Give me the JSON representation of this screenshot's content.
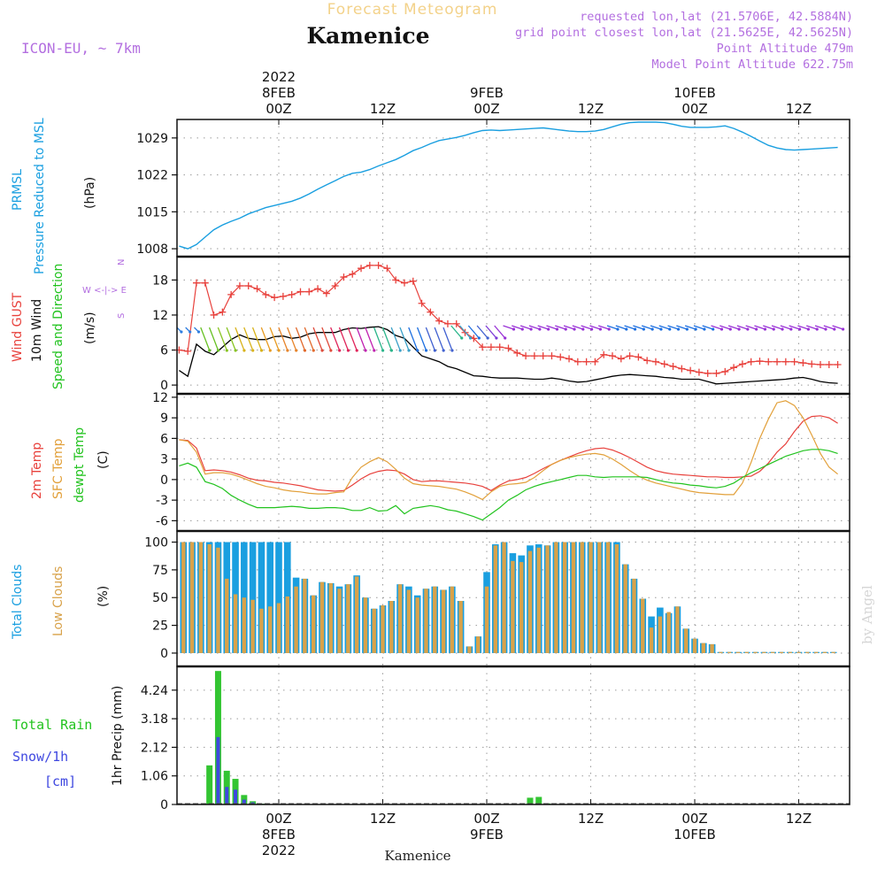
{
  "header": {
    "title": "Kamenice",
    "product": "Forecast Meteogram",
    "model": "ICON-EU, ~ 7km",
    "requested": "requested lon,lat (21.5706E, 42.5884N)",
    "gridpoint": "grid point closest lon,lat (21.5625E, 42.5625N)",
    "altitude": "Point Altitude 479m",
    "model_altitude": "Model Point Altitude 622.75m",
    "footer": "Kamenice",
    "credit": "by Angel"
  },
  "colors": {
    "pressure": "#1a9fe0",
    "gust": "#e8413c",
    "wind": "#000000",
    "temp": "#e8413c",
    "sfc_temp": "#e2a03a",
    "dewpt": "#22c31f",
    "total_clouds": "#1a9fe0",
    "low_clouds": "#d8a24a",
    "rain": "#33c532",
    "snow": "#3f48e0",
    "purple_text": "#b36fe0"
  },
  "time_axis": {
    "top_ticks": [
      {
        "hour": 0,
        "label": "00Z",
        "date": "8FEB",
        "year": "2022"
      },
      {
        "hour": 12,
        "label": "12Z",
        "date": "",
        "year": ""
      },
      {
        "hour": 24,
        "label": "00Z",
        "date": "9FEB",
        "year": ""
      },
      {
        "hour": 36,
        "label": "12Z",
        "date": "",
        "year": ""
      },
      {
        "hour": 48,
        "label": "00Z",
        "date": "10FEB",
        "year": ""
      },
      {
        "hour": 60,
        "label": "12Z",
        "date": "",
        "year": ""
      }
    ],
    "bottom_ticks": [
      {
        "hour": 0,
        "label": "00Z",
        "date": "8FEB",
        "year": "2022"
      },
      {
        "hour": 12,
        "label": "12Z",
        "date": "",
        "year": ""
      },
      {
        "hour": 24,
        "label": "00Z",
        "date": "9FEB",
        "year": ""
      },
      {
        "hour": 36,
        "label": "12Z",
        "date": "",
        "year": ""
      },
      {
        "hour": 48,
        "label": "00Z",
        "date": "10FEB",
        "year": ""
      },
      {
        "hour": 60,
        "label": "12Z",
        "date": "",
        "year": ""
      }
    ]
  },
  "panels": {
    "pressure": {
      "labels": [
        "PRMSL",
        "Pressure Reduced to MSL"
      ],
      "unit": "(hPa)"
    },
    "wind": {
      "labels": [
        "Wind GUST",
        "10m Wind",
        "Speed and Direction"
      ],
      "unit": "(m/s)",
      "compass": [
        "N",
        "W <-|-> E",
        "S"
      ]
    },
    "temp": {
      "labels": [
        "2m Temp",
        "SFC Temp",
        "dewpt Temp"
      ],
      "unit": "(C)"
    },
    "clouds": {
      "labels": [
        "Total Clouds",
        "Low Clouds"
      ],
      "unit": "(%)"
    },
    "precip": {
      "labels": [
        "Total Rain",
        "Snow/1h",
        "[cm]"
      ],
      "unit": "1hr Precip (mm)"
    }
  },
  "chart_data": [
    {
      "type": "line",
      "title": "PRMSL Pressure Reduced to MSL",
      "ylabel": "hPa",
      "ylim": [
        1006.5,
        1032.5
      ],
      "yticks": [
        1008,
        1015,
        1022,
        1029
      ],
      "x_hours": [
        -11.5,
        -10.5,
        -9.5,
        -8.5,
        -7.5,
        -6.5,
        -5.5,
        -4.5,
        -3.5,
        -2.5,
        -1.5,
        -0.5,
        0.5,
        1.5,
        2.5,
        3.5,
        4.5,
        5.5,
        6.5,
        7.5,
        8.5,
        9.5,
        10.5,
        11.5,
        12.5,
        13.5,
        14.5,
        15.5,
        16.5,
        17.5,
        18.5,
        19.5,
        20.5,
        21.5,
        22.5,
        23.5,
        24.5,
        25.5,
        26.5,
        27.5,
        28.5,
        29.5,
        30.5,
        31.5,
        32.5,
        33.5,
        34.5,
        35.5,
        36.5,
        37.5,
        38.5,
        39.5,
        40.5,
        41.5,
        42.5,
        43.5,
        44.5,
        45.5,
        46.5,
        47.5,
        48.5,
        49.5,
        50.5,
        51.5,
        52.5,
        53.5,
        54.5,
        55.5,
        56.5,
        57.5,
        58.5,
        59.5,
        60.5,
        61.5,
        62.5,
        63.5,
        64.5
      ],
      "values": [
        1008.5,
        1008.0,
        1008.8,
        1010.2,
        1011.6,
        1012.5,
        1013.2,
        1013.8,
        1014.6,
        1015.2,
        1015.8,
        1016.2,
        1016.6,
        1017.0,
        1017.6,
        1018.4,
        1019.3,
        1020.1,
        1020.9,
        1021.7,
        1022.3,
        1022.5,
        1023.0,
        1023.7,
        1024.3,
        1024.9,
        1025.7,
        1026.6,
        1027.2,
        1027.9,
        1028.5,
        1028.8,
        1029.1,
        1029.5,
        1030.0,
        1030.4,
        1030.5,
        1030.4,
        1030.5,
        1030.6,
        1030.7,
        1030.8,
        1030.9,
        1030.7,
        1030.5,
        1030.3,
        1030.2,
        1030.2,
        1030.3,
        1030.6,
        1031.1,
        1031.6,
        1031.9,
        1032.0,
        1032.0,
        1032.0,
        1031.9,
        1031.6,
        1031.2,
        1031.0,
        1031.0,
        1031.0,
        1031.1,
        1031.3,
        1030.8,
        1030.1,
        1029.3,
        1028.4,
        1027.6,
        1027.1,
        1026.8,
        1026.7,
        1026.8,
        1026.9,
        1027.0,
        1027.1,
        1027.2
      ]
    },
    {
      "type": "line",
      "title": "Wind GUST / 10m Wind",
      "ylabel": "m/s",
      "ylim": [
        -1.5,
        22.0
      ],
      "yticks": [
        0,
        6,
        12,
        18
      ],
      "gust_hours": [
        -11.5,
        -10.5,
        -9.5,
        -8.5,
        -7.5,
        -6.5,
        -5.5,
        -4.5,
        -3.5,
        -2.5,
        -1.5,
        -0.5,
        0.5,
        1.5,
        2.5,
        3.5,
        4.5,
        5.5,
        6.5,
        7.5,
        8.5,
        9.5,
        10.5,
        11.5,
        12.5,
        13.5,
        14.5,
        15.5,
        16.5,
        17.5,
        18.5,
        19.5,
        20.5,
        21.5,
        22.5,
        23.5,
        24.5,
        25.5,
        26.5,
        27.5,
        28.5,
        29.5,
        30.5,
        31.5,
        32.5,
        33.5,
        34.5,
        35.5,
        36.5,
        37.5,
        38.5,
        39.5,
        40.5,
        41.5,
        42.5,
        43.5,
        44.5,
        45.5,
        46.5,
        47.5,
        48.5,
        49.5,
        50.5,
        51.5,
        52.5,
        53.5,
        54.5,
        55.5,
        56.5,
        57.5,
        58.5,
        59.5,
        60.5,
        61.5,
        62.5,
        63.5,
        64.5
      ],
      "gust": [
        6.0,
        5.8,
        17.5,
        17.5,
        12.0,
        12.5,
        15.5,
        17.0,
        17.0,
        16.5,
        15.5,
        15.0,
        15.2,
        15.5,
        16.0,
        16.0,
        16.5,
        15.7,
        17.0,
        18.5,
        19.0,
        20.0,
        20.5,
        20.5,
        20.0,
        18.0,
        17.5,
        17.8,
        14.0,
        12.5,
        11.0,
        10.5,
        10.5,
        9.0,
        8.0,
        6.5,
        6.5,
        6.5,
        6.3,
        5.5,
        5.0,
        5.0,
        5.0,
        5.0,
        4.8,
        4.5,
        4.0,
        4.0,
        4.0,
        5.2,
        5.0,
        4.5,
        5.0,
        4.8,
        4.2,
        4.0,
        3.6,
        3.2,
        2.8,
        2.5,
        2.2,
        2.0,
        2.0,
        2.3,
        3.0,
        3.6,
        4.0,
        4.1,
        4.0,
        4.0,
        4.0,
        4.0,
        3.8,
        3.6,
        3.5,
        3.5,
        3.5
      ],
      "wind_hours": [
        -11.5,
        -10.5,
        -9.5,
        -8.5,
        -7.5,
        -6.5,
        -5.5,
        -4.5,
        -3.5,
        -2.5,
        -1.5,
        -0.5,
        0.5,
        1.5,
        2.5,
        3.5,
        4.5,
        5.5,
        6.5,
        7.5,
        8.5,
        9.5,
        10.5,
        11.5,
        12.5,
        13.5,
        14.5,
        15.5,
        16.5,
        17.5,
        18.5,
        19.5,
        20.5,
        21.5,
        22.5,
        23.5,
        24.5,
        25.5,
        26.5,
        27.5,
        28.5,
        29.5,
        30.5,
        31.5,
        32.5,
        33.5,
        34.5,
        35.5,
        36.5,
        37.5,
        38.5,
        39.5,
        40.5,
        41.5,
        42.5,
        43.5,
        44.5,
        45.5,
        46.5,
        47.5,
        48.5,
        49.5,
        50.5,
        51.5,
        52.5,
        53.5,
        54.5,
        55.5,
        56.5,
        57.5,
        58.5,
        59.5,
        60.5,
        61.5,
        62.5,
        63.5,
        64.5
      ],
      "wind": [
        2.5,
        1.5,
        7.0,
        5.8,
        5.2,
        6.5,
        7.8,
        8.6,
        8.0,
        7.8,
        7.8,
        8.3,
        8.4,
        8.0,
        8.2,
        8.8,
        9.0,
        9.0,
        9.0,
        9.5,
        9.8,
        9.7,
        9.9,
        10.0,
        9.5,
        8.5,
        8.0,
        6.5,
        5.0,
        4.5,
        4.0,
        3.2,
        2.8,
        2.2,
        1.6,
        1.5,
        1.3,
        1.2,
        1.2,
        1.2,
        1.1,
        1.0,
        1.0,
        1.2,
        1.0,
        0.7,
        0.5,
        0.6,
        0.9,
        1.2,
        1.5,
        1.7,
        1.8,
        1.7,
        1.6,
        1.5,
        1.3,
        1.2,
        1.0,
        1.0,
        1.0,
        0.6,
        0.2,
        0.3,
        0.4,
        0.5,
        0.6,
        0.7,
        0.8,
        0.9,
        1.0,
        1.2,
        1.3,
        1.0,
        0.6,
        0.4,
        0.3
      ]
    },
    {
      "type": "line",
      "title": "2m Temp / SFC Temp / dewpt Temp",
      "ylabel": "C",
      "ylim": [
        -7.5,
        12.5
      ],
      "yticks": [
        -6,
        -3,
        0,
        3,
        6,
        9,
        12
      ],
      "x_hours": [
        -11.5,
        -10.5,
        -9.5,
        -8.5,
        -7.5,
        -6.5,
        -5.5,
        -4.5,
        -3.5,
        -2.5,
        -1.5,
        -0.5,
        0.5,
        1.5,
        2.5,
        3.5,
        4.5,
        5.5,
        6.5,
        7.5,
        8.5,
        9.5,
        10.5,
        11.5,
        12.5,
        13.5,
        14.5,
        15.5,
        16.5,
        17.5,
        18.5,
        19.5,
        20.5,
        21.5,
        22.5,
        23.5,
        24.5,
        25.5,
        26.5,
        27.5,
        28.5,
        29.5,
        30.5,
        31.5,
        32.5,
        33.5,
        34.5,
        35.5,
        36.5,
        37.5,
        38.5,
        39.5,
        40.5,
        41.5,
        42.5,
        43.5,
        44.5,
        45.5,
        46.5,
        47.5,
        48.5,
        49.5,
        50.5,
        51.5,
        52.5,
        53.5,
        54.5,
        55.5,
        56.5,
        57.5,
        58.5,
        59.5,
        60.5,
        61.5,
        62.5,
        63.5,
        64.5
      ],
      "temp2m": [
        5.8,
        5.7,
        4.6,
        1.3,
        1.4,
        1.3,
        1.1,
        0.7,
        0.2,
        -0.1,
        -0.2,
        -0.4,
        -0.5,
        -0.7,
        -0.9,
        -1.2,
        -1.5,
        -1.6,
        -1.7,
        -1.6,
        -0.8,
        0.1,
        0.8,
        1.2,
        1.4,
        1.3,
        0.8,
        0.0,
        -0.3,
        -0.2,
        -0.2,
        -0.3,
        -0.4,
        -0.5,
        -0.7,
        -1.0,
        -1.6,
        -0.8,
        -0.2,
        0.0,
        0.3,
        0.9,
        1.6,
        2.2,
        2.8,
        3.3,
        3.8,
        4.2,
        4.5,
        4.6,
        4.3,
        3.8,
        3.2,
        2.5,
        1.8,
        1.3,
        1.0,
        0.8,
        0.7,
        0.6,
        0.5,
        0.4,
        0.4,
        0.3,
        0.3,
        0.4,
        0.5,
        1.2,
        2.4,
        4.0,
        5.2,
        7.0,
        8.5,
        9.2,
        9.3,
        9.0,
        8.2
      ],
      "sfc": [
        5.8,
        5.6,
        4.0,
        0.8,
        1.0,
        1.0,
        0.8,
        0.4,
        -0.1,
        -0.6,
        -1.0,
        -1.2,
        -1.5,
        -1.7,
        -1.8,
        -2.0,
        -2.1,
        -2.1,
        -1.9,
        -1.8,
        0.3,
        1.8,
        2.6,
        3.2,
        2.6,
        1.5,
        0.2,
        -0.6,
        -0.8,
        -0.9,
        -1.0,
        -1.2,
        -1.4,
        -1.8,
        -2.3,
        -2.9,
        -1.8,
        -1.0,
        -0.7,
        -0.6,
        -0.4,
        0.3,
        1.3,
        2.2,
        2.8,
        3.2,
        3.5,
        3.7,
        3.8,
        3.6,
        3.0,
        2.2,
        1.3,
        0.5,
        -0.1,
        -0.5,
        -0.8,
        -1.1,
        -1.4,
        -1.7,
        -1.9,
        -2.0,
        -2.1,
        -2.2,
        -2.2,
        -0.5,
        2.5,
        6.0,
        8.8,
        11.2,
        11.5,
        10.8,
        9.0,
        6.5,
        3.8,
        1.8,
        0.8
      ],
      "dewpt": [
        2.0,
        2.4,
        1.8,
        -0.3,
        -0.7,
        -1.3,
        -2.3,
        -3.0,
        -3.6,
        -4.1,
        -4.1,
        -4.1,
        -4.0,
        -3.9,
        -4.0,
        -4.2,
        -4.2,
        -4.1,
        -4.1,
        -4.2,
        -4.5,
        -4.5,
        -4.1,
        -4.6,
        -4.5,
        -3.8,
        -5.0,
        -4.2,
        -4.0,
        -3.8,
        -4.0,
        -4.4,
        -4.6,
        -5.0,
        -5.4,
        -5.9,
        -5.0,
        -4.1,
        -3.0,
        -2.3,
        -1.5,
        -1.0,
        -0.6,
        -0.3,
        0.0,
        0.3,
        0.6,
        0.6,
        0.4,
        0.3,
        0.4,
        0.4,
        0.4,
        0.4,
        0.3,
        0.0,
        -0.3,
        -0.5,
        -0.6,
        -0.8,
        -0.9,
        -1.1,
        -1.2,
        -1.0,
        -0.5,
        0.3,
        1.0,
        1.6,
        2.2,
        2.8,
        3.4,
        3.8,
        4.2,
        4.4,
        4.4,
        4.2,
        3.8
      ]
    },
    {
      "type": "bar",
      "title": "Total Clouds / Low Clouds",
      "ylabel": "%",
      "ylim": [
        0,
        100
      ],
      "yticks": [
        0,
        25,
        50,
        75,
        100
      ],
      "x_hours": [
        -11,
        -10,
        -9,
        -8,
        -7,
        -6,
        -5,
        -4,
        -3,
        -2,
        -1,
        0,
        1,
        2,
        3,
        4,
        5,
        6,
        7,
        8,
        9,
        10,
        11,
        12,
        13,
        14,
        15,
        16,
        17,
        18,
        19,
        20,
        21,
        22,
        23,
        24,
        25,
        26,
        27,
        28,
        29,
        30,
        31,
        32,
        33,
        34,
        35,
        36,
        37,
        38,
        39,
        40,
        41,
        42,
        43,
        44,
        45,
        46,
        47,
        48,
        49,
        50,
        51,
        52,
        53,
        54,
        55,
        56,
        57,
        58,
        59,
        60,
        61,
        62,
        63,
        64
      ],
      "total": [
        100,
        100,
        100,
        100,
        100,
        100,
        100,
        100,
        100,
        100,
        100,
        100,
        100,
        68,
        67,
        52,
        64,
        63,
        60,
        62,
        70,
        50,
        40,
        43,
        47,
        62,
        60,
        52,
        58,
        60,
        57,
        60,
        47,
        6,
        15,
        73,
        98,
        100,
        90,
        88,
        97,
        98,
        97,
        100,
        100,
        100,
        100,
        100,
        100,
        100,
        100,
        80,
        67,
        49,
        33,
        41,
        36,
        42,
        22,
        13,
        9,
        8,
        1,
        1,
        1,
        1,
        1,
        1,
        1,
        1,
        1,
        1,
        1,
        1,
        1,
        1
      ],
      "low": [
        100,
        100,
        100,
        98,
        95,
        67,
        53,
        50,
        48,
        40,
        42,
        45,
        51,
        60,
        67,
        52,
        64,
        63,
        58,
        62,
        69,
        50,
        40,
        43,
        47,
        62,
        57,
        50,
        58,
        60,
        57,
        60,
        47,
        6,
        15,
        60,
        97,
        100,
        83,
        82,
        92,
        95,
        97,
        100,
        100,
        100,
        100,
        100,
        100,
        100,
        98,
        80,
        67,
        49,
        23,
        33,
        37,
        42,
        22,
        13,
        9,
        8,
        1,
        1,
        1,
        1,
        1,
        1,
        1,
        1,
        1,
        1,
        1,
        1,
        1,
        1
      ]
    },
    {
      "type": "bar",
      "title": "1hr Precip",
      "ylabel": "1hr Precip (mm)",
      "ylim": [
        0,
        5.0
      ],
      "yticks": [
        0,
        1.06,
        2.12,
        3.18,
        4.24
      ],
      "x_hours": [
        -8,
        -7,
        -6,
        -5,
        -4,
        -3,
        -2,
        29,
        30,
        31
      ],
      "rain": [
        1.45,
        4.95,
        1.25,
        0.95,
        0.35,
        0.12,
        0.03,
        0.25,
        0.28,
        0.04
      ],
      "snow": [
        0.0,
        2.5,
        0.65,
        0.55,
        0.18,
        0.08,
        0.02,
        0.0,
        0.0,
        0.0
      ]
    }
  ]
}
